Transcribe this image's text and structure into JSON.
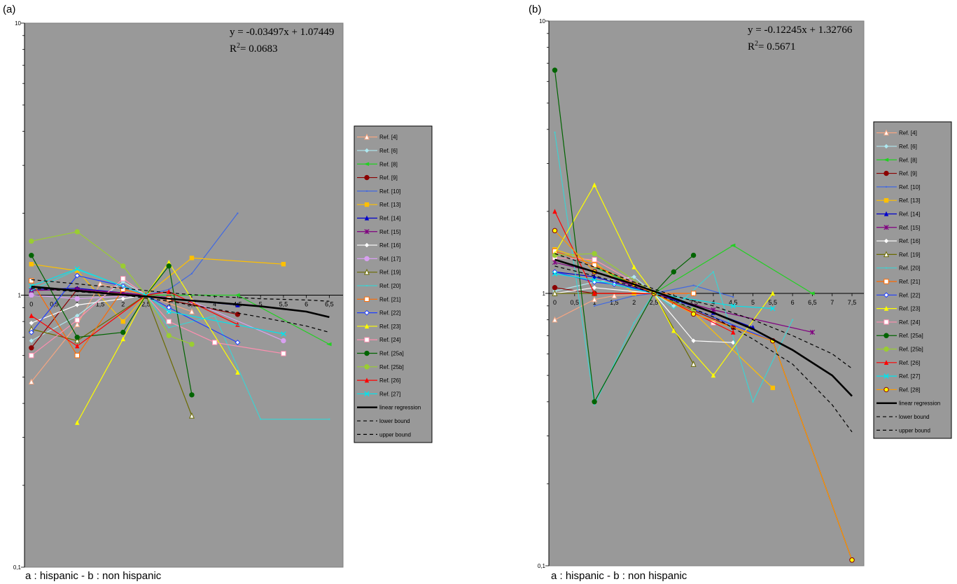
{
  "figure": {
    "caption_a": "a : hispanic - b : non hispanic",
    "caption_b": "a : hispanic - b : non hispanic"
  },
  "chart_data": [
    {
      "type": "line",
      "panel_label": "(a)",
      "equation": "y = -0.03497x + 1.07449",
      "r2_prefix": "R",
      "r2_exp": "2",
      "r2_value": "= 0.0683",
      "yscale": "log",
      "ylim": [
        0.1,
        10
      ],
      "ytick_labels": [
        "10",
        "1",
        "0,1"
      ],
      "xlim": [
        -0.15,
        6.8
      ],
      "xticks": [
        0,
        0.5,
        1,
        1.5,
        2,
        2.5,
        3,
        3.5,
        4,
        4.5,
        5,
        5.5,
        6,
        6.5
      ],
      "xtick_labels": [
        "0",
        "0,5",
        "1",
        "1,5",
        "2",
        "2,5",
        "3",
        "3,5",
        "4",
        "4,5",
        "5",
        "5,5",
        "6",
        "6,5"
      ],
      "series": [
        {
          "name": "Ref. [4]",
          "color": "#f4a582",
          "marker": "triangle-open",
          "x": [
            0,
            1,
            1.5,
            2.5,
            3.5
          ],
          "y": [
            0.48,
            0.78,
            1.1,
            1.0,
            0.87
          ]
        },
        {
          "name": "Ref. [6]",
          "color": "#aee8f0",
          "marker": "diamond",
          "x": [
            0,
            1,
            2,
            2.5,
            3
          ],
          "y": [
            0.68,
            0.84,
            1.12,
            1.0,
            0.87
          ]
        },
        {
          "name": "Ref. [8]",
          "color": "#22d022",
          "marker": "arrow",
          "x": [
            2.5,
            4.5,
            6.5
          ],
          "y": [
            1.0,
            1.0,
            0.66
          ]
        },
        {
          "name": "Ref. [9]",
          "color": "#8b0000",
          "marker": "circle",
          "x": [
            0,
            1,
            2.5,
            4.5
          ],
          "y": [
            0.64,
            1.05,
            1.0,
            0.85
          ]
        },
        {
          "name": "Ref. [10]",
          "color": "#4169e1",
          "marker": "dash",
          "x": [
            2.5,
            3,
            3.5,
            4.5
          ],
          "y": [
            1.0,
            1.05,
            1.2,
            2.0
          ]
        },
        {
          "name": "Ref. [13]",
          "color": "#ffc000",
          "marker": "square",
          "x": [
            0,
            1,
            2,
            2.5,
            3.5,
            5.5
          ],
          "y": [
            1.3,
            1.23,
            0.8,
            1.0,
            1.37,
            1.3
          ]
        },
        {
          "name": "Ref. [14]",
          "color": "#0000cc",
          "marker": "triangle",
          "x": [
            0,
            1,
            2.5,
            3,
            4.5
          ],
          "y": [
            1.05,
            1.06,
            1.0,
            0.97,
            0.92
          ]
        },
        {
          "name": "Ref. [15]",
          "color": "#800080",
          "marker": "asterisk",
          "x": [
            0,
            1,
            2,
            2.5,
            3
          ],
          "y": [
            1.04,
            1.05,
            1.02,
            1.0,
            0.98
          ]
        },
        {
          "name": "Ref. [16]",
          "color": "#ffffff",
          "marker": "diamond",
          "x": [
            0,
            1,
            2,
            2.5
          ],
          "y": [
            0.79,
            0.92,
            0.97,
            1.0
          ]
        },
        {
          "name": "Ref. [17]",
          "color": "#d8a0f0",
          "marker": "circle",
          "x": [
            0,
            1,
            2.5,
            3.5,
            5.5
          ],
          "y": [
            1.0,
            0.97,
            1.0,
            0.95,
            0.68
          ]
        },
        {
          "name": "Ref. [19]",
          "color": "#6b6b00",
          "marker": "triangle-open",
          "x": [
            0,
            1,
            2.5,
            3.5
          ],
          "y": [
            0.75,
            0.68,
            1.0,
            0.36
          ]
        },
        {
          "name": "Ref. [20]",
          "color": "#40d0d0",
          "marker": "dash",
          "x": [
            0,
            1,
            2,
            2.5,
            3,
            4,
            5,
            6.5
          ],
          "y": [
            1.04,
            1.24,
            1.08,
            1.0,
            0.76,
            0.84,
            0.35,
            0.35
          ]
        },
        {
          "name": "Ref. [21]",
          "color": "#ff6a00",
          "marker": "square-open",
          "x": [
            0,
            1,
            2,
            2.5,
            3
          ],
          "y": [
            1.13,
            0.6,
            1.05,
            1.0,
            0.97
          ]
        },
        {
          "name": "Ref. [22]",
          "color": "#1f3fff",
          "marker": "diamond-open",
          "x": [
            0,
            1,
            2,
            2.5,
            3,
            4.5
          ],
          "y": [
            0.73,
            1.18,
            1.08,
            1.0,
            0.9,
            0.67
          ]
        },
        {
          "name": "Ref. [23]",
          "color": "#ffff00",
          "marker": "triangle",
          "x": [
            1,
            2,
            2.5,
            3,
            4.5
          ],
          "y": [
            0.34,
            0.69,
            1.0,
            1.32,
            0.52
          ]
        },
        {
          "name": "Ref. [24]",
          "color": "#ff8fb0",
          "marker": "square-open",
          "x": [
            0,
            1,
            2,
            2.5,
            3,
            4,
            5.5
          ],
          "y": [
            0.6,
            0.81,
            1.15,
            1.0,
            0.8,
            0.67,
            0.61
          ]
        },
        {
          "name": "Ref. [25a]",
          "color": "#006400",
          "marker": "circle",
          "x": [
            0,
            1,
            2,
            2.5,
            3,
            3.5
          ],
          "y": [
            1.4,
            0.7,
            0.73,
            1.0,
            1.28,
            0.43
          ]
        },
        {
          "name": "Ref. [25b]",
          "color": "#9acd32",
          "marker": "circle",
          "x": [
            0,
            1,
            2,
            2.5,
            3,
            3.5
          ],
          "y": [
            1.58,
            1.71,
            1.28,
            1.0,
            0.71,
            0.66
          ]
        },
        {
          "name": "Ref. [26]",
          "color": "#ff0000",
          "marker": "triangle",
          "x": [
            0,
            1,
            2.5,
            3,
            4.5
          ],
          "y": [
            0.84,
            0.65,
            1.0,
            1.03,
            0.78
          ]
        },
        {
          "name": "Ref. [27]",
          "color": "#00e5ee",
          "marker": "cross",
          "x": [
            0,
            1,
            2.5,
            3,
            5.5
          ],
          "y": [
            1.08,
            1.25,
            1.0,
            0.87,
            0.72
          ]
        },
        {
          "name": "linear regression",
          "color": "#000000",
          "style": "solid-thick",
          "x": [
            0,
            1,
            2,
            2.5,
            3,
            4,
            5,
            6,
            6.5
          ],
          "y": [
            1.075,
            1.038,
            1.003,
            0.99,
            0.97,
            0.94,
            0.91,
            0.87,
            0.83
          ]
        },
        {
          "name": "lower bound",
          "color": "#000000",
          "style": "dashed",
          "x": [
            0,
            1,
            2,
            3,
            4,
            5,
            6,
            6.5
          ],
          "y": [
            1.06,
            1.03,
            1.0,
            0.95,
            0.89,
            0.83,
            0.77,
            0.73
          ]
        },
        {
          "name": "upper bound",
          "color": "#000000",
          "style": "dashed",
          "x": [
            0,
            1,
            2,
            3,
            4,
            5,
            6,
            6.5
          ],
          "y": [
            1.14,
            1.1,
            1.06,
            1.02,
            0.99,
            0.97,
            0.96,
            0.95
          ]
        }
      ]
    },
    {
      "type": "line",
      "panel_label": "(b)",
      "equation": "y = -0.12245x + 1.32766",
      "r2_prefix": "R",
      "r2_exp": "2",
      "r2_value": "= 0.5671",
      "yscale": "log",
      "ylim": [
        0.1,
        10
      ],
      "ytick_labels": [
        "10",
        "1",
        "0,1"
      ],
      "xlim": [
        -0.15,
        7.8
      ],
      "xticks": [
        0,
        0.5,
        1,
        1.5,
        2,
        2.5,
        3,
        3.5,
        4,
        4.5,
        5,
        5.5,
        6,
        6.5,
        7,
        7.5
      ],
      "xtick_labels": [
        "0",
        "0,5",
        "1",
        "1,5",
        "2",
        "2,5",
        "3",
        "3,5",
        "4",
        "4,5",
        "5",
        "5,5",
        "6",
        "6,5",
        "7",
        "7,5"
      ],
      "series": [
        {
          "name": "Ref. [4]",
          "color": "#f4a582",
          "marker": "triangle-open",
          "x": [
            0,
            1,
            1.5,
            2.5,
            3.5
          ],
          "y": [
            0.8,
            0.95,
            0.98,
            1.0,
            1.0
          ]
        },
        {
          "name": "Ref. [6]",
          "color": "#aee8f0",
          "marker": "diamond",
          "x": [
            0,
            1,
            2,
            2.5,
            3
          ],
          "y": [
            1.02,
            1.1,
            1.15,
            1.0,
            0.9
          ]
        },
        {
          "name": "Ref. [8]",
          "color": "#22d022",
          "marker": "arrow",
          "x": [
            1,
            2.5,
            4.5,
            6.5
          ],
          "y": [
            1.25,
            1.0,
            1.5,
            1.0
          ]
        },
        {
          "name": "Ref. [9]",
          "color": "#8b0000",
          "marker": "circle",
          "x": [
            0,
            1,
            2.5,
            4.5,
            5.5,
            7.5
          ],
          "y": [
            1.05,
            1.0,
            1.0,
            0.75,
            0.67,
            0.105
          ]
        },
        {
          "name": "Ref. [10]",
          "color": "#4169e1",
          "marker": "dash",
          "x": [
            1,
            2,
            2.5,
            3.5,
            4.5
          ],
          "y": [
            0.9,
            0.98,
            1.0,
            1.07,
            0.97
          ]
        },
        {
          "name": "Ref. [13]",
          "color": "#ffc000",
          "marker": "square",
          "x": [
            0,
            1,
            2,
            2.5,
            3.5,
            5.5
          ],
          "y": [
            1.45,
            1.3,
            1.0,
            1.0,
            0.85,
            0.45
          ]
        },
        {
          "name": "Ref. [14]",
          "color": "#0000cc",
          "marker": "triangle",
          "x": [
            0,
            1,
            2.5,
            4,
            5
          ],
          "y": [
            1.2,
            1.15,
            1.0,
            0.85,
            0.75
          ]
        },
        {
          "name": "Ref. [15]",
          "color": "#800080",
          "marker": "asterisk",
          "x": [
            0,
            1,
            2.5,
            4,
            6.5
          ],
          "y": [
            1.3,
            1.2,
            1.0,
            0.87,
            0.72
          ]
        },
        {
          "name": "Ref. [16]",
          "color": "#ffffff",
          "marker": "diamond",
          "x": [
            0,
            1,
            2.5,
            3.5,
            4.5
          ],
          "y": [
            1.0,
            1.05,
            1.0,
            0.67,
            0.66
          ]
        },
        {
          "name": "Ref. [19]",
          "color": "#6b6b00",
          "marker": "triangle-open",
          "x": [
            0,
            1,
            2.5,
            3.5
          ],
          "y": [
            1.0,
            1.0,
            1.0,
            0.55
          ]
        },
        {
          "name": "Ref. [20]",
          "color": "#40d0d0",
          "marker": "dash",
          "x": [
            0,
            1,
            2,
            2.5,
            3,
            4,
            5,
            6
          ],
          "y": [
            3.9,
            0.39,
            0.78,
            1.0,
            0.88,
            1.2,
            0.4,
            0.8
          ]
        },
        {
          "name": "Ref. [21]",
          "color": "#ff6a00",
          "marker": "square-open",
          "x": [
            0,
            1,
            2.5,
            3.5
          ],
          "y": [
            1.43,
            1.27,
            1.0,
            1.0
          ]
        },
        {
          "name": "Ref. [22]",
          "color": "#1f3fff",
          "marker": "diamond-open",
          "x": [
            0,
            1,
            1.5,
            2.5,
            5.5
          ],
          "y": [
            1.2,
            1.1,
            1.08,
            1.0,
            0.67
          ]
        },
        {
          "name": "Ref. [23]",
          "color": "#ffff00",
          "marker": "triangle",
          "x": [
            0,
            1,
            2,
            2.5,
            3,
            4,
            5.5
          ],
          "y": [
            1.4,
            2.5,
            1.25,
            1.0,
            0.73,
            0.5,
            1.0
          ]
        },
        {
          "name": "Ref. [24]",
          "color": "#ff8fb0",
          "marker": "square-open",
          "x": [
            0,
            1,
            2.5,
            4
          ],
          "y": [
            1.35,
            1.33,
            1.0,
            0.78
          ]
        },
        {
          "name": "Ref. [25a]",
          "color": "#006400",
          "marker": "circle",
          "x": [
            0,
            1,
            2.5,
            3,
            3.5
          ],
          "y": [
            6.6,
            0.4,
            1.0,
            1.2,
            1.38
          ]
        },
        {
          "name": "Ref. [25b]",
          "color": "#9acd32",
          "marker": "circle",
          "x": [
            0,
            1,
            2.5,
            3.5
          ],
          "y": [
            1.38,
            1.4,
            1.0,
            0.87
          ]
        },
        {
          "name": "Ref. [26]",
          "color": "#ff0000",
          "marker": "triangle",
          "x": [
            0,
            1,
            2.5,
            4.5
          ],
          "y": [
            2.0,
            1.0,
            1.0,
            0.72
          ]
        },
        {
          "name": "Ref. [27]",
          "color": "#00e5ee",
          "marker": "cross",
          "x": [
            0,
            1,
            2.5,
            4.5,
            5.5
          ],
          "y": [
            1.18,
            1.12,
            1.0,
            0.9,
            0.88
          ]
        },
        {
          "name": "Ref. [28]",
          "color": "#ff9900",
          "marker": "circle-yellow",
          "x": [
            0,
            1,
            2,
            2.5,
            3.5,
            5.5,
            7.5
          ],
          "y": [
            1.7,
            1.2,
            1.08,
            1.0,
            0.84,
            0.67,
            0.105
          ]
        },
        {
          "name": "linear regression",
          "color": "#000000",
          "style": "solid-thick",
          "x": [
            0,
            1,
            2,
            3,
            4,
            5,
            6,
            7,
            7.5
          ],
          "y": [
            1.33,
            1.2,
            1.08,
            0.96,
            0.85,
            0.74,
            0.62,
            0.5,
            0.42
          ]
        },
        {
          "name": "lower bound",
          "color": "#000000",
          "style": "dashed",
          "x": [
            0,
            1,
            2,
            3,
            4,
            5,
            6,
            7,
            7.5
          ],
          "y": [
            1.26,
            1.16,
            1.06,
            0.94,
            0.82,
            0.68,
            0.55,
            0.39,
            0.31
          ]
        },
        {
          "name": "upper bound",
          "color": "#000000",
          "style": "dashed",
          "x": [
            0,
            1,
            2,
            3,
            4,
            5,
            6,
            7,
            7.5
          ],
          "y": [
            1.4,
            1.25,
            1.1,
            0.98,
            0.9,
            0.8,
            0.7,
            0.6,
            0.53
          ]
        }
      ]
    }
  ]
}
